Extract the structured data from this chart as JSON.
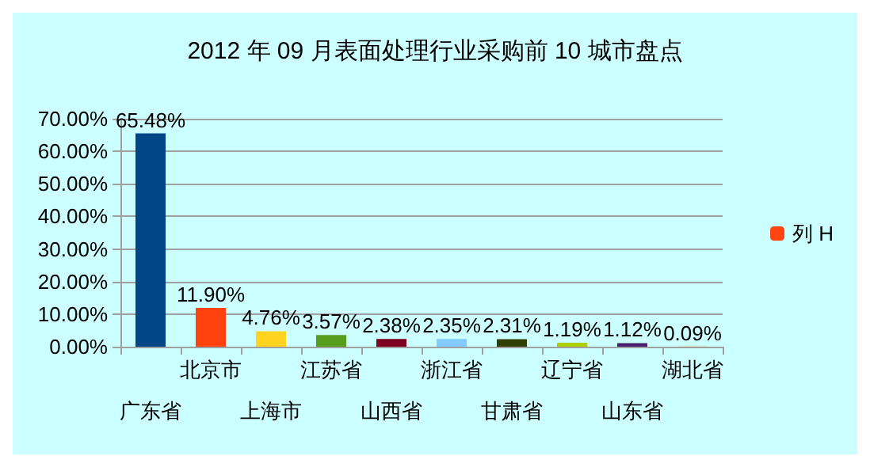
{
  "chart_data": {
    "type": "bar",
    "title": "2012 年 09 月表面处理行业采购前 10 城市盘点",
    "categories": [
      "广东省",
      "北京市",
      "上海市",
      "江苏省",
      "山西省",
      "浙江省",
      "甘肃省",
      "辽宁省",
      "山东省",
      "湖北省"
    ],
    "series": [
      {
        "name": "列 H",
        "color": "#ff4512",
        "colors": [
          "#004586",
          "#ff420e",
          "#ffd320",
          "#579d1c",
          "#7e0021",
          "#83caff",
          "#314004",
          "#aecf00",
          "#4b1f6f",
          "#ff950e"
        ],
        "values": [
          65.48,
          11.9,
          4.76,
          3.57,
          2.38,
          2.35,
          2.31,
          1.19,
          1.12,
          0.09
        ],
        "value_labels": [
          "65.48%",
          "11.90%",
          "4.76%",
          "3.57%",
          "2.38%",
          "2.35%",
          "2.31%",
          "1.19%",
          "1.12%",
          "0.09%"
        ]
      }
    ],
    "ylim": [
      0,
      70
    ],
    "yticks": [
      {
        "value": 0,
        "label": "0.00%"
      },
      {
        "value": 10,
        "label": "10.00%"
      },
      {
        "value": 20,
        "label": "20.00%"
      },
      {
        "value": 30,
        "label": "30.00%"
      },
      {
        "value": 40,
        "label": "40.00%"
      },
      {
        "value": 50,
        "label": "50.00%"
      },
      {
        "value": 60,
        "label": "60.00%"
      },
      {
        "value": 70,
        "label": "70.00%"
      }
    ],
    "grid": "y",
    "legend": "right"
  }
}
